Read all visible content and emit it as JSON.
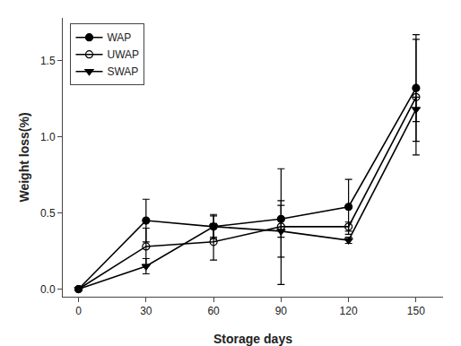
{
  "chart_data": {
    "type": "line",
    "x": [
      0,
      30,
      60,
      90,
      120,
      150
    ],
    "series": [
      {
        "name": "WAP",
        "color": "#000000",
        "marker": "circle",
        "values": [
          0.0,
          0.45,
          0.41,
          0.46,
          0.54,
          1.32
        ],
        "errors": [
          0.0,
          0.14,
          0.07,
          0.12,
          0.18,
          0.35
        ]
      },
      {
        "name": "UWAP",
        "color": "#000000",
        "marker": "circle-open",
        "values": [
          0.0,
          0.28,
          0.31,
          0.41,
          0.41,
          1.26
        ],
        "errors": [
          0.0,
          0.12,
          0.12,
          0.38,
          0.03,
          0.38
        ]
      },
      {
        "name": "SWAP",
        "color": "#000000",
        "marker": "triangle-down",
        "values": [
          0.0,
          0.15,
          0.41,
          0.38,
          0.32,
          1.18
        ],
        "errors": [
          0.0,
          0.05,
          0.08,
          0.17,
          0.02,
          0.08
        ]
      }
    ],
    "x_label": "Storage days",
    "y_label": "Weight loss(%)",
    "xlim": [
      -7,
      162
    ],
    "xticks": [
      0,
      30,
      60,
      90,
      120,
      150
    ],
    "ylim": [
      -0.05,
      1.78
    ],
    "yticks": [
      {
        "value": 0,
        "label": "0.0"
      },
      0.5,
      {
        "value": 1,
        "label": "1.0"
      },
      1.5
    ],
    "legend": "upper left",
    "grid": false
  }
}
